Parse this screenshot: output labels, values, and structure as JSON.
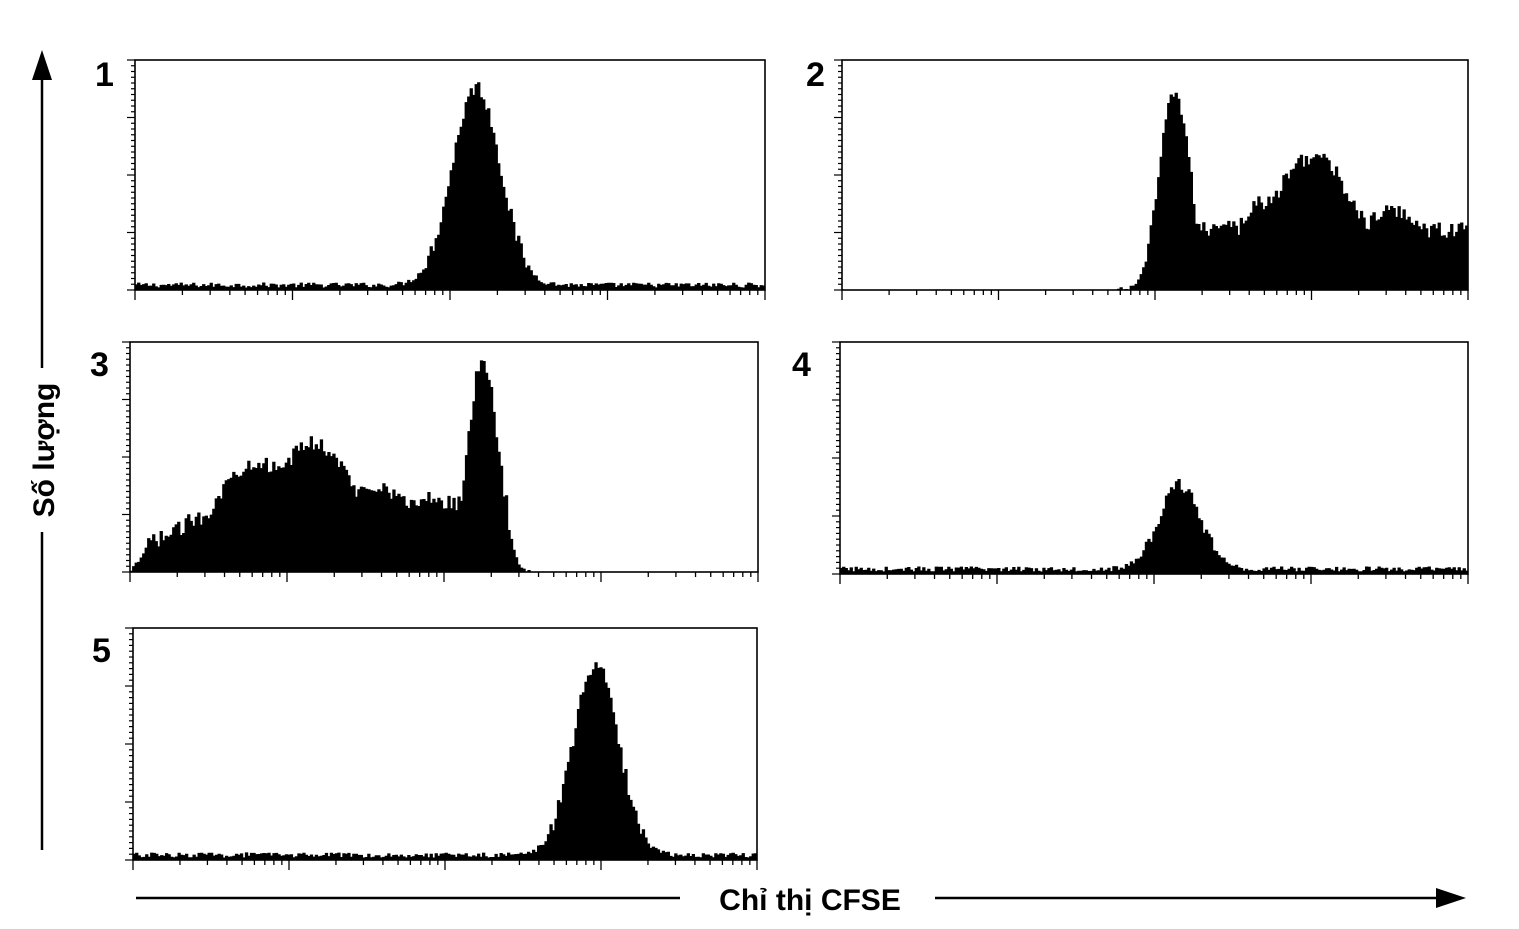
{
  "xlabel": "Chỉ thị CFSE",
  "ylabel": "Số lượng",
  "colors": {
    "fill": "#000000",
    "axis": "#000000",
    "background": "#ffffff"
  },
  "chart_data": [
    {
      "type": "area",
      "panel_label": "1",
      "xlim": [
        0,
        100
      ],
      "ylim": [
        0,
        100
      ],
      "x_scale": "log",
      "grid": false,
      "peaks": [
        {
          "x": 54,
          "height": 86,
          "width": 3.8
        }
      ],
      "baseline": 2
    },
    {
      "type": "area",
      "panel_label": "2",
      "xlim": [
        0,
        100
      ],
      "ylim": [
        0,
        100
      ],
      "x_scale": "log",
      "grid": false,
      "peaks": [
        {
          "x": 53,
          "height": 86,
          "width": 2.4
        },
        {
          "x": 61,
          "height": 30,
          "width": 4.5
        },
        {
          "x": 67,
          "height": 38,
          "width": 4.5
        },
        {
          "x": 75,
          "height": 58,
          "width": 7.0
        },
        {
          "x": 88,
          "height": 34,
          "width": 7.0
        },
        {
          "x": 97,
          "height": 18,
          "width": 4.0
        }
      ],
      "range": [
        44,
        100
      ],
      "baseline": 0
    },
    {
      "type": "area",
      "panel_label": "3",
      "xlim": [
        0,
        100
      ],
      "ylim": [
        0,
        100
      ],
      "x_scale": "log",
      "grid": false,
      "peaks": [
        {
          "x": 4,
          "height": 12,
          "width": 5
        },
        {
          "x": 12,
          "height": 24,
          "width": 6
        },
        {
          "x": 20,
          "height": 48,
          "width": 7
        },
        {
          "x": 29,
          "height": 56,
          "width": 7
        },
        {
          "x": 39,
          "height": 38,
          "width": 6
        },
        {
          "x": 48,
          "height": 32,
          "width": 4
        },
        {
          "x": 56,
          "height": 92,
          "width": 2.4
        }
      ],
      "range": [
        0,
        64
      ],
      "baseline": 0
    },
    {
      "type": "area",
      "panel_label": "4",
      "xlim": [
        0,
        100
      ],
      "ylim": [
        0,
        100
      ],
      "x_scale": "log",
      "grid": false,
      "peaks": [
        {
          "x": 54,
          "height": 36,
          "width": 3.3
        }
      ],
      "baseline": 2
    },
    {
      "type": "area",
      "panel_label": "5",
      "xlim": [
        0,
        100
      ],
      "ylim": [
        0,
        100
      ],
      "x_scale": "log",
      "grid": false,
      "peaks": [
        {
          "x": 74,
          "height": 82,
          "width": 3.6
        }
      ],
      "baseline": 2
    }
  ]
}
